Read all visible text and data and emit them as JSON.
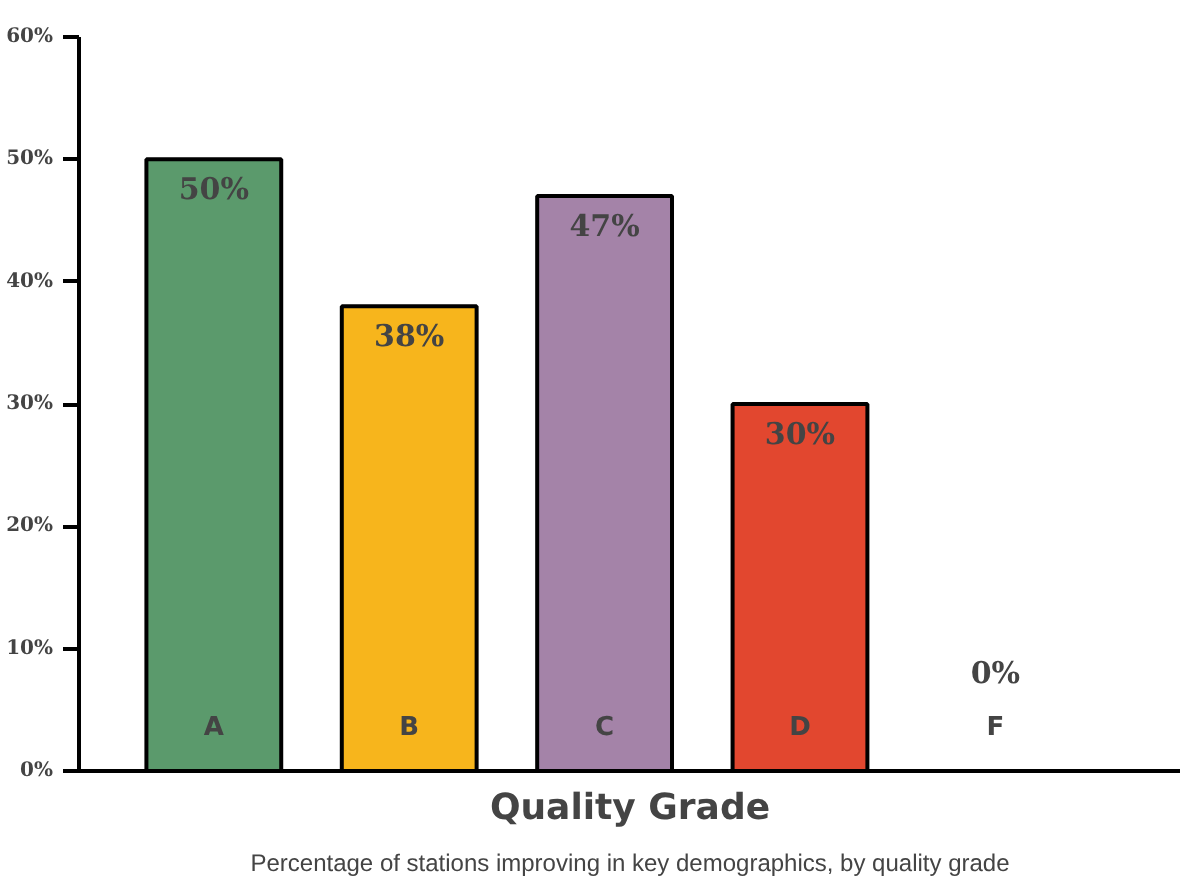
{
  "chart_data": {
    "type": "bar",
    "categories": [
      "A",
      "B",
      "C",
      "D",
      "F"
    ],
    "values": [
      50,
      38,
      47,
      30,
      0
    ],
    "colors": [
      "#5b9a6c",
      "#f7b51c",
      "#a483a8",
      "#e2472f",
      "#ffffff"
    ],
    "value_labels": [
      "50%",
      "38%",
      "47%",
      "30%",
      "0%"
    ],
    "xlabel": "Quality Grade",
    "annotations": [
      "Percentage of stations improving in key demographics, by quality grade"
    ],
    "ylim": [
      0,
      60
    ],
    "yticks": [
      {
        "value": 0,
        "label": "0%"
      },
      {
        "value": 10,
        "label": "10%"
      },
      {
        "value": 20,
        "label": "20%"
      },
      {
        "value": 30,
        "label": "30%"
      },
      {
        "value": 40,
        "label": "40%"
      },
      {
        "value": 50,
        "label": "50%"
      },
      {
        "value": 60,
        "label": "60%"
      }
    ],
    "grid": false
  }
}
